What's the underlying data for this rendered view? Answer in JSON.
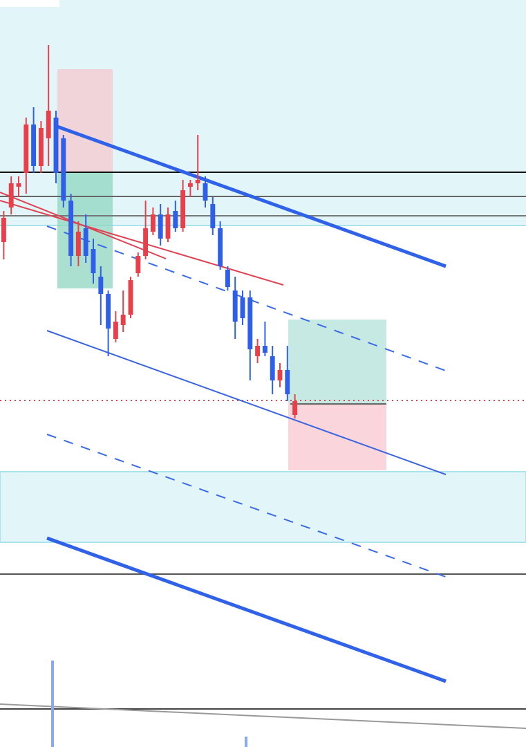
{
  "chart_data": {
    "type": "candlestick",
    "categories": [
      null,
      null,
      null,
      null,
      null,
      null,
      null,
      null,
      null,
      null,
      null,
      null,
      null,
      null,
      null,
      null,
      null,
      null,
      null,
      null,
      null,
      null,
      null,
      null,
      null,
      null,
      null,
      null,
      null,
      null,
      null,
      null,
      null,
      null,
      null,
      null,
      null,
      null,
      null,
      null
    ],
    "open": [
      73,
      78,
      81,
      83,
      90,
      84,
      88,
      91,
      88,
      79,
      71,
      75,
      72,
      68,
      65.5,
      59,
      61,
      62.5,
      68.5,
      71,
      74.5,
      77,
      73.5,
      77.5,
      75,
      81,
      81.5,
      81.5,
      78.5,
      75,
      69,
      66,
      65,
      65,
      56.5,
      58,
      56.5,
      53,
      54.5,
      48
    ],
    "high": [
      77.5,
      82.5,
      82.5,
      91,
      92.5,
      90.5,
      101.5,
      92,
      88.5,
      80,
      76,
      77,
      73.5,
      69.5,
      66,
      63,
      66,
      68,
      71.5,
      79,
      78,
      78.5,
      78,
      79,
      82,
      82,
      88.5,
      82.5,
      79.5,
      76,
      69.5,
      68,
      66,
      66,
      59,
      61.5,
      58,
      55.5,
      58,
      51
    ],
    "low": [
      70.5,
      77,
      79.5,
      80,
      83,
      83,
      84,
      81.5,
      78,
      69.5,
      69.5,
      70,
      67,
      61,
      56.5,
      58.5,
      60,
      62,
      68,
      70.5,
      74,
      72.5,
      73,
      74.5,
      74.5,
      79.5,
      80.5,
      78,
      74,
      69,
      66,
      59,
      61,
      53,
      55.5,
      56.5,
      51,
      52,
      50,
      47.5
    ],
    "close": [
      76.5,
      81.5,
      81.5,
      90,
      84,
      89.5,
      92,
      83,
      79,
      71,
      74.5,
      71,
      68.5,
      65.5,
      60.5,
      61.5,
      62.5,
      67.5,
      71,
      75,
      77,
      73.5,
      77,
      75,
      80.5,
      81.5,
      82,
      79,
      75,
      69.5,
      66.5,
      61.5,
      62,
      57.5,
      58,
      57,
      53,
      54.5,
      51,
      50
    ],
    "up_color": "#e8404a",
    "down_color": "#2f5fe8",
    "ylim": [
      0,
      108
    ]
  }
}
